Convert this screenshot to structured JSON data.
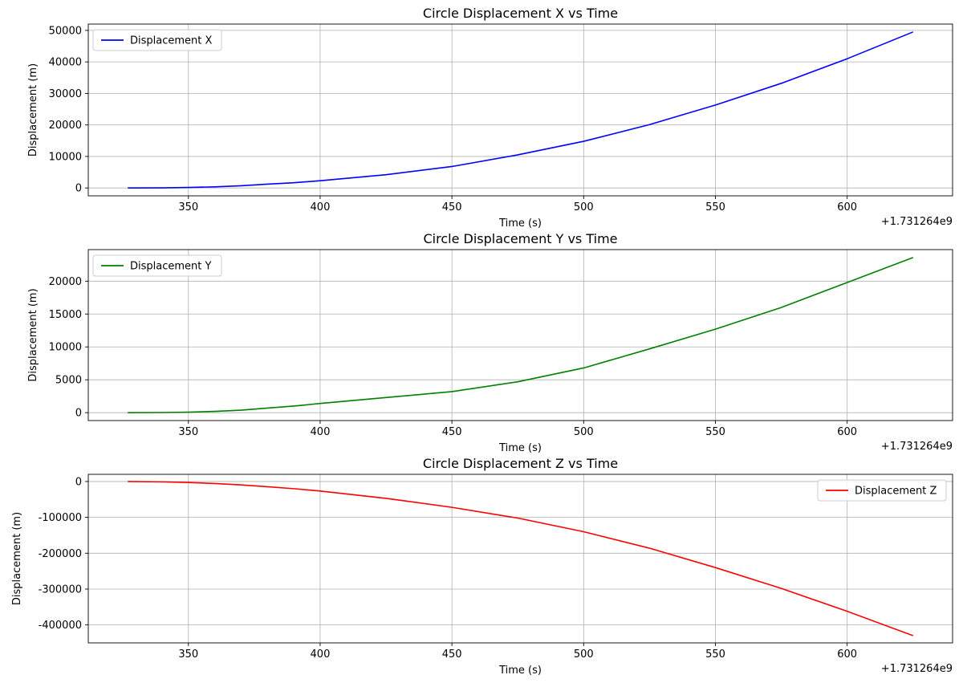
{
  "chart_data": [
    {
      "type": "line",
      "title": "Circle Displacement X vs Time",
      "xlabel": "Time (s)",
      "ylabel": "Displacement (m)",
      "x_offset_label": "+1.731264e9",
      "xlim": [
        312,
        640
      ],
      "ylim": [
        -2500,
        52000
      ],
      "xticks": [
        350,
        400,
        450,
        500,
        550,
        600
      ],
      "yticks": [
        0,
        10000,
        20000,
        30000,
        40000,
        50000
      ],
      "grid": true,
      "legend_position": "upper-left",
      "series": [
        {
          "name": "Displacement X",
          "color": "#0000ff",
          "x": [
            327,
            340,
            350,
            360,
            370,
            380,
            390,
            400,
            425,
            450,
            475,
            500,
            525,
            550,
            575,
            600,
            625
          ],
          "y": [
            0,
            40,
            150,
            350,
            700,
            1200,
            1650,
            2300,
            4200,
            6800,
            10500,
            14800,
            20100,
            26300,
            33200,
            41000,
            49500
          ]
        }
      ]
    },
    {
      "type": "line",
      "title": "Circle Displacement Y vs Time",
      "xlabel": "Time (s)",
      "ylabel": "Displacement (m)",
      "x_offset_label": "+1.731264e9",
      "xlim": [
        312,
        640
      ],
      "ylim": [
        -1200,
        24800
      ],
      "xticks": [
        350,
        400,
        450,
        500,
        550,
        600
      ],
      "yticks": [
        0,
        5000,
        10000,
        15000,
        20000
      ],
      "grid": true,
      "legend_position": "upper-left",
      "series": [
        {
          "name": "Displacement Y",
          "color": "#008000",
          "x": [
            327,
            340,
            350,
            360,
            370,
            380,
            390,
            400,
            425,
            450,
            475,
            500,
            525,
            550,
            575,
            600,
            625
          ],
          "y": [
            0,
            20,
            80,
            200,
            380,
            700,
            1000,
            1400,
            2300,
            3200,
            4700,
            6800,
            9700,
            12700,
            16000,
            19800,
            23600
          ]
        }
      ]
    },
    {
      "type": "line",
      "title": "Circle Displacement Z vs Time",
      "xlabel": "Time (s)",
      "ylabel": "Displacement (m)",
      "x_offset_label": "+1.731264e9",
      "xlim": [
        312,
        640
      ],
      "ylim": [
        -450000,
        20000
      ],
      "xticks": [
        350,
        400,
        450,
        500,
        550,
        600
      ],
      "yticks": [
        0,
        -100000,
        -200000,
        -300000,
        -400000
      ],
      "grid": true,
      "legend_position": "upper-right",
      "series": [
        {
          "name": "Displacement Z",
          "color": "#ff0000",
          "x": [
            327,
            340,
            350,
            360,
            370,
            380,
            390,
            400,
            425,
            450,
            475,
            500,
            525,
            550,
            575,
            600,
            625
          ],
          "y": [
            0,
            -1000,
            -2800,
            -5500,
            -9500,
            -14500,
            -20000,
            -26500,
            -47000,
            -72000,
            -102000,
            -140000,
            -186000,
            -240000,
            -298000,
            -362000,
            -430000
          ]
        }
      ]
    }
  ]
}
